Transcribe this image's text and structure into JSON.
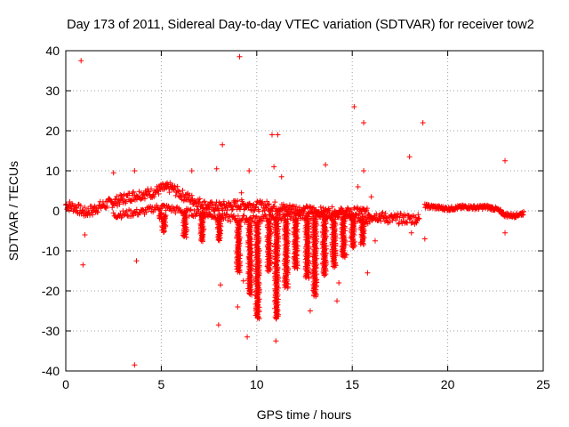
{
  "chart_data": {
    "type": "scatter",
    "title": "Day 173 of 2011, Sidereal Day-to-day VTEC variation (SDTVAR) for receiver tow2",
    "xlabel": "GPS time / hours",
    "ylabel": "SDTVAR / TECUs",
    "xlim": [
      0,
      25
    ],
    "ylim": [
      -40,
      40
    ],
    "xticks": [
      "0",
      "5",
      "10",
      "15",
      "20",
      "25"
    ],
    "yticks": [
      "40",
      "30",
      "20",
      "10",
      "0",
      "-10",
      "-20",
      "-30",
      "-40"
    ],
    "grid": true,
    "marker": "+",
    "color": "#ff0000",
    "series": [
      {
        "name": "SDTVAR",
        "dense_band": [
          [
            0.0,
            1.5
          ],
          [
            0.5,
            0.8
          ],
          [
            1.0,
            -0.5
          ],
          [
            1.5,
            0.5
          ],
          [
            2.0,
            1.5
          ],
          [
            2.5,
            2.2
          ],
          [
            3.0,
            3.0
          ],
          [
            3.5,
            3.8
          ],
          [
            4.0,
            4.2
          ],
          [
            4.5,
            4.5
          ],
          [
            5.0,
            5.5
          ],
          [
            5.5,
            5.8
          ],
          [
            6.0,
            4.2
          ],
          [
            6.5,
            3.0
          ],
          [
            7.0,
            2.0
          ],
          [
            7.5,
            1.0
          ],
          [
            8.0,
            1.0
          ],
          [
            8.5,
            1.2
          ],
          [
            9.0,
            1.5
          ],
          [
            9.5,
            1.5
          ],
          [
            10.0,
            1.2
          ],
          [
            10.5,
            1.2
          ],
          [
            11.0,
            1.0
          ],
          [
            11.5,
            0.5
          ],
          [
            12.0,
            0.5
          ],
          [
            12.5,
            0.0
          ],
          [
            13.0,
            0.0
          ],
          [
            13.5,
            -0.5
          ],
          [
            14.0,
            -0.3
          ],
          [
            14.5,
            -0.5
          ],
          [
            15.0,
            -0.5
          ],
          [
            15.5,
            -0.2
          ],
          [
            16.0,
            -1.0
          ],
          [
            16.5,
            -1.5
          ],
          [
            17.0,
            -2.0
          ],
          [
            17.5,
            -2.0
          ],
          [
            18.0,
            -2.0
          ],
          [
            18.5,
            -2.0
          ]
        ],
        "lower_band": [
          [
            2.5,
            -1.0
          ],
          [
            3.0,
            -0.8
          ],
          [
            3.5,
            -0.5
          ],
          [
            4.0,
            -0.3
          ],
          [
            4.5,
            0.5
          ],
          [
            5.0,
            1.0
          ],
          [
            5.5,
            0.5
          ],
          [
            6.0,
            0.0
          ],
          [
            6.5,
            -0.5
          ],
          [
            7.0,
            -0.5
          ],
          [
            8.0,
            -1.5
          ],
          [
            9.0,
            -2.0
          ],
          [
            10.0,
            -2.0
          ],
          [
            11.0,
            -1.5
          ],
          [
            12.0,
            -1.5
          ],
          [
            13.0,
            -1.0
          ],
          [
            14.0,
            -1.0
          ],
          [
            15.0,
            -1.5
          ],
          [
            16.0,
            -2.5
          ]
        ],
        "quiet_band": [
          [
            18.8,
            1.2
          ],
          [
            19.5,
            0.8
          ],
          [
            20.0,
            0.5
          ],
          [
            20.5,
            0.8
          ],
          [
            21.0,
            1.0
          ],
          [
            21.5,
            0.8
          ],
          [
            22.0,
            1.0
          ],
          [
            22.5,
            0.5
          ],
          [
            23.0,
            -1.0
          ],
          [
            23.5,
            -1.2
          ],
          [
            24.0,
            -0.5
          ]
        ],
        "dips": [
          [
            4.95,
            -0.5,
            -2.0
          ],
          [
            5.1,
            -1.0,
            -5.5
          ],
          [
            6.2,
            -0.5,
            -6.5
          ],
          [
            7.1,
            -0.5,
            -7.5
          ],
          [
            8.0,
            -1.0,
            -7.5
          ],
          [
            9.0,
            -3.0,
            -15.5
          ],
          [
            9.6,
            -3.0,
            -21.0
          ],
          [
            10.0,
            -3.0,
            -27.0
          ],
          [
            10.6,
            -2.0,
            -15.0
          ],
          [
            11.0,
            -2.0,
            -27.0
          ],
          [
            11.5,
            -2.0,
            -19.5
          ],
          [
            12.0,
            -2.0,
            -14.5
          ],
          [
            12.6,
            -2.0,
            -17.0
          ],
          [
            13.0,
            -2.0,
            -21.5
          ],
          [
            13.5,
            -2.0,
            -16.0
          ],
          [
            14.0,
            -2.0,
            -14.0
          ],
          [
            14.5,
            -2.0,
            -11.5
          ],
          [
            15.0,
            -2.0,
            -9.0
          ],
          [
            15.5,
            -2.0,
            -8.5
          ]
        ],
        "outliers": [
          [
            0.8,
            37.5
          ],
          [
            9.1,
            38.5
          ],
          [
            3.6,
            -38.5
          ],
          [
            0.9,
            -13.5
          ],
          [
            1.0,
            -6.0
          ],
          [
            2.5,
            9.5
          ],
          [
            3.6,
            10.0
          ],
          [
            3.7,
            -12.5
          ],
          [
            6.6,
            10.0
          ],
          [
            7.9,
            10.5
          ],
          [
            8.0,
            -28.5
          ],
          [
            8.1,
            -18.5
          ],
          [
            8.2,
            16.5
          ],
          [
            9.0,
            -24.0
          ],
          [
            9.2,
            4.5
          ],
          [
            9.3,
            -17.5
          ],
          [
            9.5,
            -31.5
          ],
          [
            9.6,
            10.0
          ],
          [
            10.8,
            19.0
          ],
          [
            10.9,
            11.0
          ],
          [
            11.0,
            -32.5
          ],
          [
            11.1,
            19.0
          ],
          [
            11.3,
            8.5
          ],
          [
            13.6,
            11.5
          ],
          [
            14.2,
            -22.5
          ],
          [
            14.7,
            -11.0
          ],
          [
            15.1,
            26.0
          ],
          [
            15.6,
            22.0
          ],
          [
            15.6,
            10.0
          ],
          [
            15.8,
            -15.5
          ],
          [
            16.2,
            -7.5
          ],
          [
            18.0,
            13.5
          ],
          [
            18.1,
            -5.5
          ],
          [
            18.7,
            22.0
          ],
          [
            18.8,
            -7.0
          ],
          [
            23.0,
            12.5
          ],
          [
            23.0,
            -5.5
          ],
          [
            1.4,
            -1.0
          ],
          [
            12.8,
            -25.0
          ],
          [
            14.3,
            -18.0
          ],
          [
            15.3,
            6.0
          ],
          [
            16.0,
            3.5
          ]
        ]
      }
    ]
  }
}
